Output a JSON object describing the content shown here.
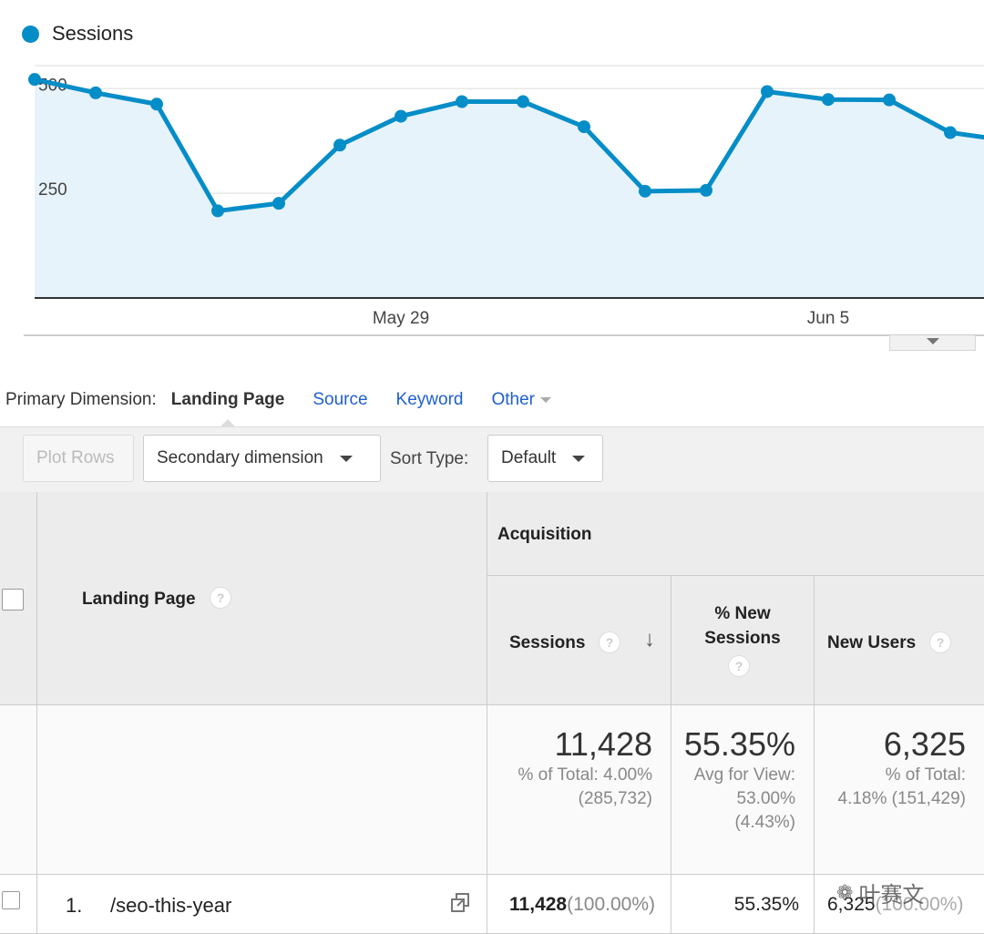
{
  "chart_data": {
    "type": "area",
    "series": [
      {
        "name": "Sessions",
        "values": [
          522,
          490,
          463,
          208,
          226,
          365,
          434,
          469,
          469,
          409,
          255,
          257,
          493,
          474,
          473,
          395,
          375
        ]
      }
    ],
    "x_tick_labels": [
      "May 29",
      "Jun 5"
    ],
    "y_tick_labels": [
      "500",
      "250"
    ],
    "ylim": [
      0,
      555
    ],
    "grid": true,
    "legend": "top-left",
    "color": "#058dc7",
    "fill_color": "#e6f3fa"
  },
  "dimension": {
    "label": "Primary Dimension:",
    "active": "Landing Page",
    "links": [
      "Source",
      "Keyword",
      "Other"
    ]
  },
  "toolbar": {
    "plot_rows": "Plot Rows",
    "secondary": "Secondary dimension",
    "sort_label": "Sort Type:",
    "sort_value": "Default"
  },
  "table": {
    "group_header": "Acquisition",
    "col_landing": "Landing Page",
    "col_sessions": "Sessions",
    "col_new_sessions_1": "% New",
    "col_new_sessions_2": "Sessions",
    "col_new_users": "New Users",
    "totals": {
      "sessions": "11,428",
      "sessions_sub1": "% of Total: 4.00%",
      "sessions_sub2": "(285,732)",
      "new_sessions": "55.35%",
      "new_sessions_sub1": "Avg for View:",
      "new_sessions_sub2": "53.00%",
      "new_sessions_sub3": "(4.43%)",
      "new_users": "6,325",
      "new_users_sub1": "% of Total:",
      "new_users_sub2": "4.18% (151,429)"
    },
    "row": {
      "index": "1.",
      "page": "/seo-this-year",
      "sessions": "11,428",
      "sessions_pct": "(100.00%)",
      "new_sessions": "55.35%",
      "new_users": "6,325",
      "new_users_pct": "(100.00%)"
    }
  },
  "watermark": "叶赛文"
}
